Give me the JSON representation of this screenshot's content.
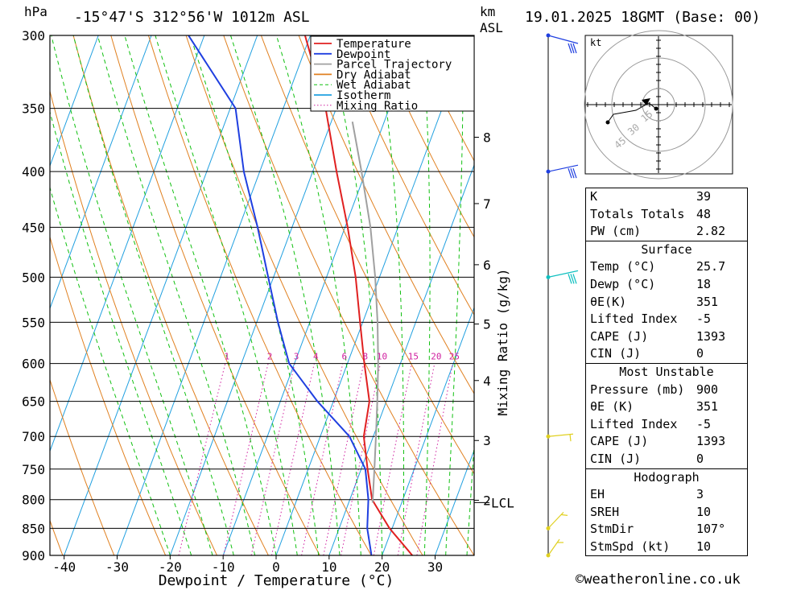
{
  "header": {
    "pressure_unit": "hPa",
    "location": "-15°47'S 312°56'W 1012m ASL",
    "km_label": "km",
    "asl_label": "ASL",
    "datetime": "19.01.2025 18GMT (Base: 00)"
  },
  "chart_data": {
    "type": "line",
    "subtype": "skew-T log-P diagram",
    "xlabel": "Dewpoint / Temperature (°C)",
    "ylabel": "hPa",
    "y2label": "Mixing Ratio (g/kg)",
    "x_ticks": [
      -40,
      -30,
      -20,
      -10,
      0,
      10,
      20,
      30
    ],
    "y_ticks": [
      300,
      350,
      400,
      450,
      500,
      550,
      600,
      650,
      700,
      750,
      800,
      850,
      900
    ],
    "ylim": [
      900,
      300
    ],
    "y_scale": "log",
    "km_ticks": [
      {
        "km": 8,
        "label": "8",
        "p": 372
      },
      {
        "km": 7,
        "label": "7",
        "p": 428
      },
      {
        "km": 6,
        "label": "6",
        "p": 487
      },
      {
        "km": 5,
        "label": "5",
        "p": 552
      },
      {
        "km": 4,
        "label": "4",
        "p": 622
      },
      {
        "km": 3,
        "label": "3",
        "p": 706
      },
      {
        "km": 2,
        "label": "2",
        "p": 801
      }
    ],
    "lcl_label": "LCL",
    "lcl_p": 805,
    "mixing_ratio_labels": [
      "1",
      "2",
      "3",
      "4",
      "6",
      "8",
      "10",
      "15",
      "20",
      "25"
    ],
    "legend": [
      {
        "name": "Temperature",
        "color": "#e02020",
        "style": "solid"
      },
      {
        "name": "Dewpoint",
        "color": "#1f3fe0",
        "style": "solid"
      },
      {
        "name": "Parcel Trajectory",
        "color": "#a0a0a0",
        "style": "solid"
      },
      {
        "name": "Dry Adiabat",
        "color": "#e08020",
        "style": "solid"
      },
      {
        "name": "Wet Adiabat",
        "color": "#10c010",
        "style": "dashed"
      },
      {
        "name": "Isotherm",
        "color": "#20a0e0",
        "style": "solid"
      },
      {
        "name": "Mixing Ratio",
        "color": "#d020a0",
        "style": "dotted"
      }
    ],
    "series": [
      {
        "name": "Temperature",
        "color": "#e02020",
        "points": [
          [
            900,
            25.7
          ],
          [
            850,
            19.5
          ],
          [
            800,
            14.2
          ],
          [
            750,
            11.2
          ],
          [
            700,
            8.2
          ],
          [
            650,
            6.8
          ],
          [
            600,
            3.2
          ],
          [
            550,
            -0.5
          ],
          [
            500,
            -4.5
          ],
          [
            450,
            -9.5
          ],
          [
            400,
            -15.5
          ],
          [
            350,
            -22
          ],
          [
            300,
            -31
          ]
        ]
      },
      {
        "name": "Dewpoint",
        "color": "#1f3fe0",
        "points": [
          [
            900,
            18
          ],
          [
            850,
            15.3
          ],
          [
            800,
            13.5
          ],
          [
            750,
            10.8
          ],
          [
            700,
            5.5
          ],
          [
            650,
            -3
          ],
          [
            600,
            -11
          ],
          [
            550,
            -16
          ],
          [
            500,
            -21
          ],
          [
            450,
            -26.5
          ],
          [
            400,
            -33
          ],
          [
            350,
            -39
          ],
          [
            300,
            -53
          ]
        ]
      },
      {
        "name": "Parcel Trajectory",
        "color": "#a0a0a0",
        "points": [
          [
            805,
            14.5
          ],
          [
            750,
            12.5
          ],
          [
            700,
            10.5
          ],
          [
            650,
            8.3
          ],
          [
            600,
            5.8
          ],
          [
            550,
            2.8
          ],
          [
            500,
            -0.8
          ],
          [
            450,
            -5.2
          ],
          [
            400,
            -10.8
          ],
          [
            360,
            -16
          ]
        ]
      }
    ]
  },
  "winds": {
    "colors_by_level": [
      {
        "p": 300,
        "color": "#1f3fe0"
      },
      {
        "p": 400,
        "color": "#1f3fe0"
      },
      {
        "p": 500,
        "color": "#10c0c0"
      },
      {
        "p": 700,
        "color": "#e0d020"
      },
      {
        "p": 850,
        "color": "#e0d020"
      },
      {
        "p": 900,
        "color": "#e0d020"
      }
    ]
  },
  "hodograph": {
    "unit_label": "kt",
    "ring_labels": [
      "15",
      "30",
      "45"
    ]
  },
  "indices": {
    "general": [
      {
        "label": "K",
        "value": "39"
      },
      {
        "label": "Totals Totals",
        "value": "48"
      },
      {
        "label": "PW (cm)",
        "value": "2.82"
      }
    ],
    "surface": {
      "title": "Surface",
      "rows": [
        {
          "label": "Temp (°C)",
          "value": "25.7"
        },
        {
          "label": "Dewp (°C)",
          "value": "18"
        },
        {
          "label": "θE(K)",
          "value": "351"
        },
        {
          "label": "Lifted Index",
          "value": "-5"
        },
        {
          "label": "CAPE (J)",
          "value": "1393"
        },
        {
          "label": "CIN (J)",
          "value": "0"
        }
      ]
    },
    "most_unstable": {
      "title": "Most Unstable",
      "rows": [
        {
          "label": "Pressure (mb)",
          "value": "900"
        },
        {
          "label": "θE (K)",
          "value": "351"
        },
        {
          "label": "Lifted Index",
          "value": "-5"
        },
        {
          "label": "CAPE (J)",
          "value": "1393"
        },
        {
          "label": "CIN (J)",
          "value": "0"
        }
      ]
    },
    "hodograph": {
      "title": "Hodograph",
      "rows": [
        {
          "label": "EH",
          "value": "3"
        },
        {
          "label": "SREH",
          "value": "10"
        },
        {
          "label": "StmDir",
          "value": "107°"
        },
        {
          "label": "StmSpd (kt)",
          "value": "10"
        }
      ]
    }
  },
  "footer": "©weatheronline.co.uk"
}
